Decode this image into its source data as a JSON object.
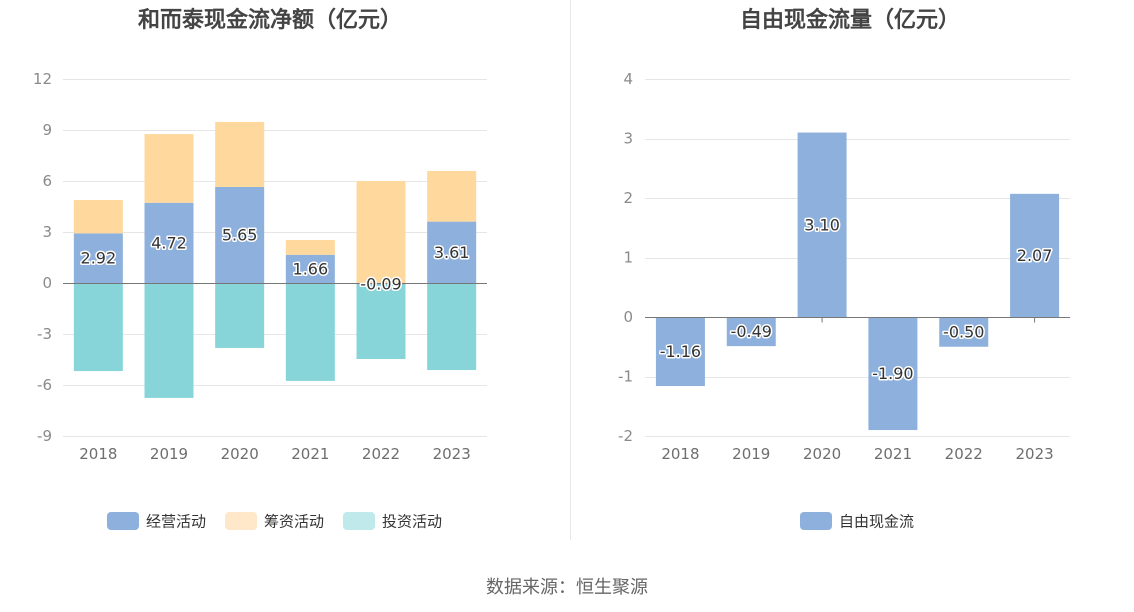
{
  "footer": {
    "source": "数据来源：恒生聚源"
  },
  "chart_data": [
    {
      "type": "bar",
      "stacked": true,
      "title": "和而泰现金流净额（亿元）",
      "categories": [
        "2018",
        "2019",
        "2020",
        "2021",
        "2022",
        "2023"
      ],
      "ylim": [
        -9,
        12
      ],
      "yticks": [
        12,
        9,
        6,
        3,
        0,
        -3,
        -6,
        -9
      ],
      "grid": true,
      "legend": "bottom",
      "series": [
        {
          "name": "经营活动",
          "color": "#8eb0dc",
          "legend_color": "#8eb0dc",
          "values": [
            2.92,
            4.72,
            5.65,
            1.66,
            -0.09,
            3.61
          ],
          "labels": [
            "2.92",
            "4.72",
            "5.65",
            "1.66",
            "-0.09",
            "3.61"
          ]
        },
        {
          "name": "筹资活动",
          "color": "#fed89c",
          "legend_color": "#ffe8c9",
          "values": [
            1.96,
            4.04,
            3.82,
            0.87,
            6.0,
            2.98
          ]
        },
        {
          "name": "投资活动",
          "color": "#87d5d9",
          "legend_color": "#c0e9ec",
          "values": [
            -5.18,
            -6.76,
            -3.82,
            -5.76,
            -4.38,
            -5.12
          ]
        }
      ]
    },
    {
      "type": "bar",
      "stacked": false,
      "title": "自由现金流量（亿元）",
      "categories": [
        "2018",
        "2019",
        "2020",
        "2021",
        "2022",
        "2023"
      ],
      "ylim": [
        -2,
        4
      ],
      "yticks": [
        4,
        3,
        2,
        1,
        0,
        -1,
        -2
      ],
      "grid": true,
      "legend": "bottom",
      "series": [
        {
          "name": "自由现金流",
          "color": "#8eb0dc",
          "legend_color": "#8eb0dc",
          "values": [
            -1.16,
            -0.49,
            3.1,
            -1.9,
            -0.5,
            2.07
          ],
          "labels": [
            "-1.16",
            "-0.49",
            "3.10",
            "-1.90",
            "-0.50",
            "2.07"
          ]
        }
      ]
    }
  ]
}
